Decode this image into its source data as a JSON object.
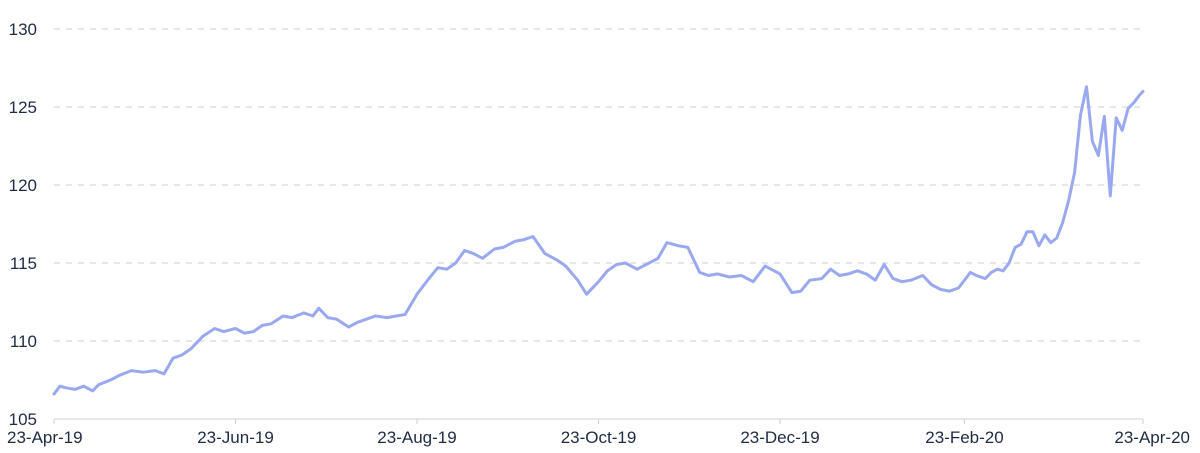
{
  "chart_data": {
    "type": "line",
    "title": "",
    "xlabel": "",
    "ylabel": "",
    "ylim": [
      105,
      130
    ],
    "yticks": [
      105,
      110,
      115,
      120,
      125,
      130
    ],
    "ytick_labels": [
      "105",
      "110",
      "115",
      "120",
      "125",
      "130"
    ],
    "xlim": [
      "2019-04-23",
      "2020-04-23"
    ],
    "xtick_labels": [
      "23-Apr-19",
      "23-Jun-19",
      "23-Aug-19",
      "23-Oct-19",
      "23-Dec-19",
      "23-Feb-20",
      "23-Apr-20"
    ],
    "xtick_dates": [
      "2019-04-23",
      "2019-06-23",
      "2019-08-23",
      "2019-10-23",
      "2019-12-23",
      "2020-02-23",
      "2020-04-23"
    ],
    "grid": true,
    "series": [
      {
        "color": "#9aa8f0",
        "x": [
          "2019-04-23",
          "2019-04-25",
          "2019-04-27",
          "2019-04-30",
          "2019-05-03",
          "2019-05-06",
          "2019-05-08",
          "2019-05-12",
          "2019-05-15",
          "2019-05-19",
          "2019-05-23",
          "2019-05-27",
          "2019-05-30",
          "2019-06-02",
          "2019-06-05",
          "2019-06-08",
          "2019-06-12",
          "2019-06-16",
          "2019-06-19",
          "2019-06-23",
          "2019-06-26",
          "2019-06-29",
          "2019-07-02",
          "2019-07-05",
          "2019-07-09",
          "2019-07-12",
          "2019-07-16",
          "2019-07-19",
          "2019-07-21",
          "2019-07-24",
          "2019-07-27",
          "2019-07-31",
          "2019-08-03",
          "2019-08-06",
          "2019-08-09",
          "2019-08-13",
          "2019-08-16",
          "2019-08-19",
          "2019-08-23",
          "2019-08-27",
          "2019-08-30",
          "2019-09-02",
          "2019-09-05",
          "2019-09-08",
          "2019-09-11",
          "2019-09-14",
          "2019-09-18",
          "2019-09-21",
          "2019-09-25",
          "2019-09-28",
          "2019-10-01",
          "2019-10-05",
          "2019-10-09",
          "2019-10-12",
          "2019-10-16",
          "2019-10-19",
          "2019-10-23",
          "2019-10-26",
          "2019-10-29",
          "2019-11-01",
          "2019-11-05",
          "2019-11-08",
          "2019-11-12",
          "2019-11-15",
          "2019-11-19",
          "2019-11-22",
          "2019-11-26",
          "2019-11-29",
          "2019-12-02",
          "2019-12-06",
          "2019-12-10",
          "2019-12-14",
          "2019-12-18",
          "2019-12-23",
          "2019-12-27",
          "2019-12-30",
          "2020-01-02",
          "2020-01-06",
          "2020-01-09",
          "2020-01-12",
          "2020-01-15",
          "2020-01-18",
          "2020-01-21",
          "2020-01-24",
          "2020-01-27",
          "2020-01-30",
          "2020-02-02",
          "2020-02-05",
          "2020-02-09",
          "2020-02-12",
          "2020-02-15",
          "2020-02-18",
          "2020-02-21",
          "2020-02-23",
          "2020-02-25",
          "2020-02-27",
          "2020-03-01",
          "2020-03-03",
          "2020-03-05",
          "2020-03-07",
          "2020-03-09",
          "2020-03-11",
          "2020-03-13",
          "2020-03-15",
          "2020-03-17",
          "2020-03-19",
          "2020-03-21",
          "2020-03-23",
          "2020-03-25",
          "2020-03-27",
          "2020-03-29",
          "2020-03-31",
          "2020-04-02",
          "2020-04-04",
          "2020-04-06",
          "2020-04-08",
          "2020-04-10",
          "2020-04-12",
          "2020-04-14",
          "2020-04-16",
          "2020-04-18",
          "2020-04-20",
          "2020-04-22",
          "2020-04-23"
        ],
        "values": [
          106.6,
          107.1,
          107.0,
          106.9,
          107.1,
          106.8,
          107.2,
          107.5,
          107.8,
          108.1,
          108.0,
          108.1,
          107.9,
          108.9,
          109.1,
          109.5,
          110.3,
          110.8,
          110.6,
          110.8,
          110.5,
          110.6,
          111.0,
          111.1,
          111.6,
          111.5,
          111.8,
          111.6,
          112.1,
          111.5,
          111.4,
          110.9,
          111.2,
          111.4,
          111.6,
          111.5,
          111.6,
          111.7,
          113.0,
          114.0,
          114.7,
          114.6,
          115.0,
          115.8,
          115.6,
          115.3,
          115.9,
          116.0,
          116.4,
          116.5,
          116.7,
          115.6,
          115.2,
          114.8,
          113.9,
          113.0,
          113.8,
          114.5,
          114.9,
          115.0,
          114.6,
          114.9,
          115.3,
          116.3,
          116.1,
          116.0,
          114.4,
          114.2,
          114.3,
          114.1,
          114.2,
          113.8,
          114.8,
          114.3,
          113.1,
          113.2,
          113.9,
          114.0,
          114.6,
          114.2,
          114.3,
          114.5,
          114.3,
          113.9,
          114.9,
          114.0,
          113.8,
          113.9,
          114.2,
          113.6,
          113.3,
          113.2,
          113.4,
          113.9,
          114.4,
          114.2,
          114.0,
          114.4,
          114.6,
          114.5,
          115.0,
          116.0,
          116.2,
          117.0,
          117.0,
          116.1,
          116.8,
          116.3,
          116.6,
          117.6,
          119.0,
          120.8,
          124.5,
          126.3,
          122.8,
          121.9,
          124.4,
          119.3,
          124.3,
          123.5,
          124.9,
          125.3,
          125.8,
          126.0
        ]
      }
    ]
  }
}
